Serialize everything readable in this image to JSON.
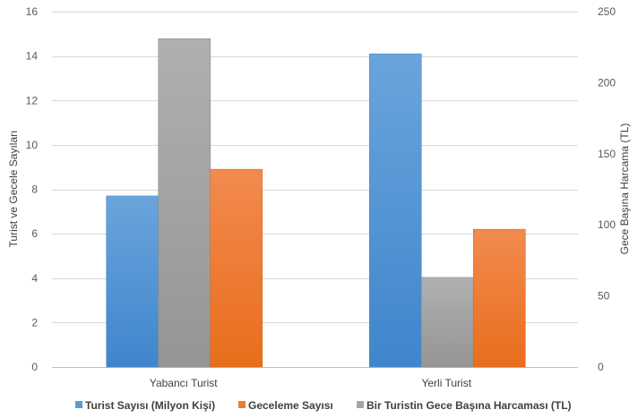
{
  "chart_data": {
    "type": "bar",
    "categories": [
      "Yabancı Turist",
      "Yerli Turist"
    ],
    "series": [
      {
        "name": "Turist Sayısı (Milyon Kişi)",
        "axis": "left",
        "color": "#5B9BD5",
        "values": [
          7.7,
          14.1
        ]
      },
      {
        "name": "Bir Turistin Gece Başına Harcaması (TL)",
        "axis": "right",
        "color": "#A5A5A5",
        "values": [
          231,
          63
        ]
      },
      {
        "name": "Geceleme Sayısı",
        "axis": "left",
        "color": "#ED7D31",
        "values": [
          8.9,
          6.2
        ]
      }
    ],
    "ylabel": "Turist ve Gecele Sayıları",
    "y2label": "Gece Başına Harcama (TL)",
    "ylim": [
      0,
      16
    ],
    "y2lim": [
      0,
      250
    ],
    "yticks": [
      0,
      2,
      4,
      6,
      8,
      10,
      12,
      14,
      16
    ],
    "y2ticks": [
      0,
      50,
      100,
      150,
      200,
      250
    ],
    "grid": true,
    "legend": {
      "position": "bottom",
      "entries": [
        {
          "name": "Turist Sayısı (Milyon Kişi)",
          "color": "#5B9BD5"
        },
        {
          "name": "Geceleme Sayısı",
          "color": "#ED7D31"
        },
        {
          "name": "Bir Turistin Gece Başına Harcaması (TL)",
          "color": "#A5A5A5"
        }
      ]
    }
  }
}
